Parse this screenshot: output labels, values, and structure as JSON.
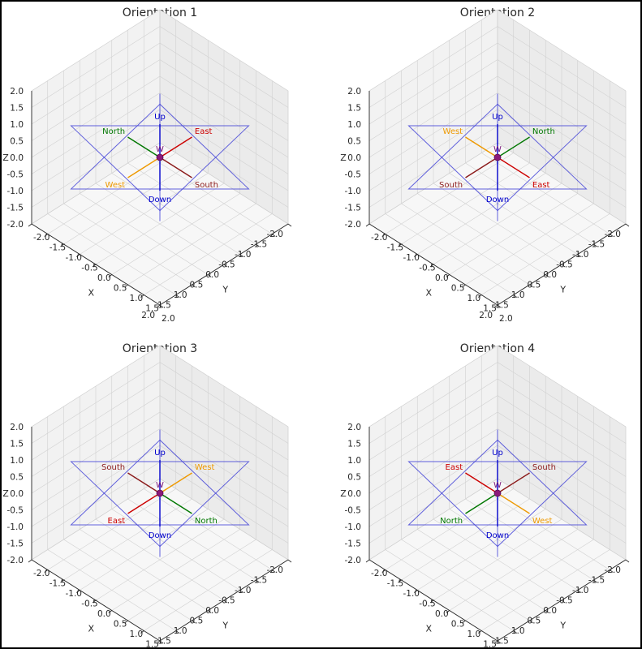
{
  "chart_data": [
    {
      "type": "scatter",
      "title": "Orientation 1",
      "xlabel": "X",
      "ylabel": "Y",
      "zlabel": "Z",
      "xlim": [
        -2,
        2
      ],
      "ylim": [
        -2,
        2
      ],
      "zlim": [
        -2,
        2
      ],
      "ticks": [
        "-2.0",
        "-1.5",
        "-1.0",
        "-0.5",
        "0.0",
        "0.5",
        "1.0",
        "1.5",
        "2.0"
      ],
      "center_label": "W",
      "directions": [
        {
          "name": "Up",
          "color": "#0000cc",
          "end": [
            0,
            0,
            1
          ]
        },
        {
          "name": "Down",
          "color": "#0000cc",
          "end": [
            0,
            0,
            -1
          ]
        },
        {
          "name": "North",
          "color": "#007700",
          "end": [
            -1,
            0,
            0
          ]
        },
        {
          "name": "South",
          "color": "#8b1a1a",
          "end": [
            1,
            0,
            0
          ]
        },
        {
          "name": "East",
          "color": "#cc0000",
          "end": [
            0,
            -1,
            0
          ]
        },
        {
          "name": "West",
          "color": "#ee9900",
          "end": [
            0,
            1,
            0
          ]
        }
      ]
    },
    {
      "type": "scatter",
      "title": "Orientation 2",
      "xlabel": "X",
      "ylabel": "Y",
      "zlabel": "Z",
      "xlim": [
        -2,
        2
      ],
      "ylim": [
        -2,
        2
      ],
      "zlim": [
        -2,
        2
      ],
      "ticks": [
        "-2.0",
        "-1.5",
        "-1.0",
        "-0.5",
        "0.0",
        "0.5",
        "1.0",
        "1.5",
        "2.0"
      ],
      "center_label": "W",
      "directions": [
        {
          "name": "Up",
          "color": "#0000cc",
          "end": [
            0,
            0,
            1
          ]
        },
        {
          "name": "Down",
          "color": "#0000cc",
          "end": [
            0,
            0,
            -1
          ]
        },
        {
          "name": "North",
          "color": "#007700",
          "end": [
            0,
            -1,
            0
          ]
        },
        {
          "name": "South",
          "color": "#8b1a1a",
          "end": [
            0,
            1,
            0
          ]
        },
        {
          "name": "East",
          "color": "#cc0000",
          "end": [
            1,
            0,
            0
          ]
        },
        {
          "name": "West",
          "color": "#ee9900",
          "end": [
            -1,
            0,
            0
          ]
        }
      ]
    },
    {
      "type": "scatter",
      "title": "Orientation 3",
      "xlabel": "X",
      "ylabel": "Y",
      "zlabel": "Z",
      "xlim": [
        -2,
        2
      ],
      "ylim": [
        -2,
        2
      ],
      "zlim": [
        -2,
        2
      ],
      "ticks": [
        "-2.0",
        "-1.5",
        "-1.0",
        "-0.5",
        "0.0",
        "0.5",
        "1.0",
        "1.5",
        "2.0"
      ],
      "center_label": "W",
      "directions": [
        {
          "name": "Up",
          "color": "#0000cc",
          "end": [
            0,
            0,
            1
          ]
        },
        {
          "name": "Down",
          "color": "#0000cc",
          "end": [
            0,
            0,
            -1
          ]
        },
        {
          "name": "North",
          "color": "#007700",
          "end": [
            1,
            0,
            0
          ]
        },
        {
          "name": "South",
          "color": "#8b1a1a",
          "end": [
            -1,
            0,
            0
          ]
        },
        {
          "name": "East",
          "color": "#cc0000",
          "end": [
            0,
            1,
            0
          ]
        },
        {
          "name": "West",
          "color": "#ee9900",
          "end": [
            0,
            -1,
            0
          ]
        }
      ]
    },
    {
      "type": "scatter",
      "title": "Orientation 4",
      "xlabel": "X",
      "ylabel": "Y",
      "zlabel": "Z",
      "xlim": [
        -2,
        2
      ],
      "ylim": [
        -2,
        2
      ],
      "zlim": [
        -2,
        2
      ],
      "ticks": [
        "-2.0",
        "-1.5",
        "-1.0",
        "-0.5",
        "0.0",
        "0.5",
        "1.0",
        "1.5",
        "2.0"
      ],
      "center_label": "W",
      "directions": [
        {
          "name": "Up",
          "color": "#0000cc",
          "end": [
            0,
            0,
            1
          ]
        },
        {
          "name": "Down",
          "color": "#0000cc",
          "end": [
            0,
            0,
            -1
          ]
        },
        {
          "name": "North",
          "color": "#007700",
          "end": [
            0,
            1,
            0
          ]
        },
        {
          "name": "South",
          "color": "#8b1a1a",
          "end": [
            0,
            -1,
            0
          ]
        },
        {
          "name": "East",
          "color": "#cc0000",
          "end": [
            -1,
            0,
            0
          ]
        },
        {
          "name": "West",
          "color": "#ee9900",
          "end": [
            1,
            0,
            0
          ]
        }
      ]
    }
  ]
}
